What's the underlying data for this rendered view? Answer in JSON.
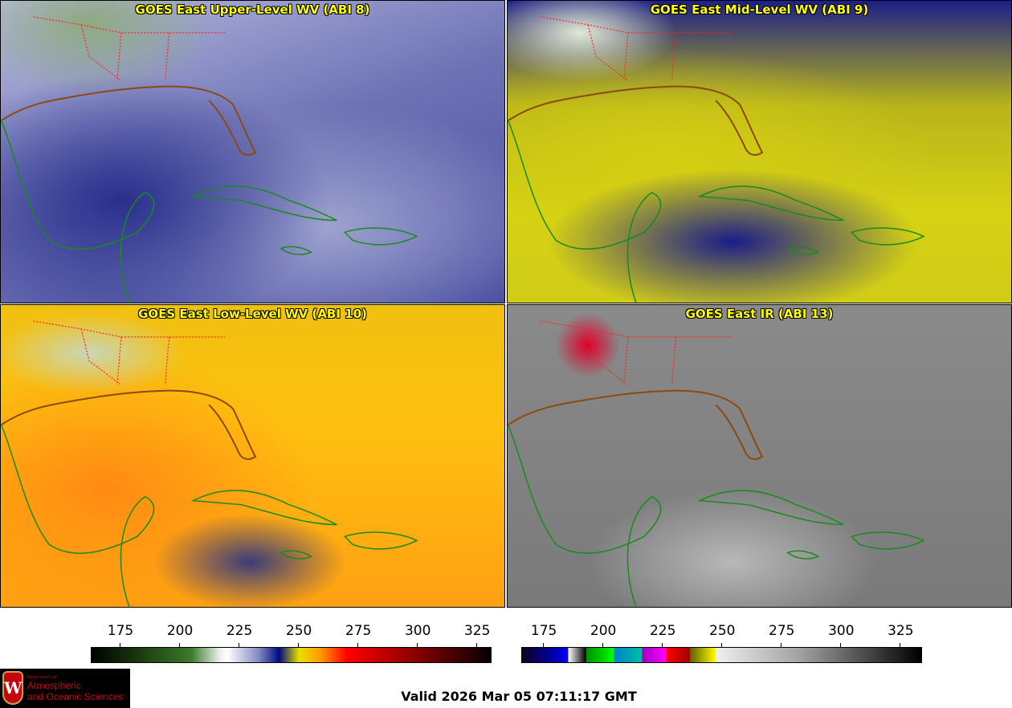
{
  "panels": [
    {
      "title": "GOES East Upper-Level WV (ABI 8)"
    },
    {
      "title": "GOES East Mid-Level WV (ABI 9)"
    },
    {
      "title": "GOES East Low-Level WV (ABI 10)"
    },
    {
      "title": "GOES East IR (ABI 13)"
    }
  ],
  "colorbars": [
    {
      "name": "water-vapor",
      "ticks": [
        "175",
        "200",
        "225",
        "250",
        "275",
        "300",
        "325"
      ],
      "range": [
        162.5,
        331
      ]
    },
    {
      "name": "infrared",
      "ticks": [
        "175",
        "200",
        "225",
        "250",
        "275",
        "300",
        "325"
      ],
      "range": [
        165.5,
        334
      ]
    }
  ],
  "logo": {
    "line0": "Department of",
    "line1": "Atmospheric",
    "line2": "and Oceanic Sciences",
    "crest": "W"
  },
  "valid_time": "Valid 2026 Mar 05 07:11:17 GMT",
  "colors": {
    "title": "#ffff00",
    "borders": "#ff2020",
    "coast": "#1a8a1a"
  }
}
